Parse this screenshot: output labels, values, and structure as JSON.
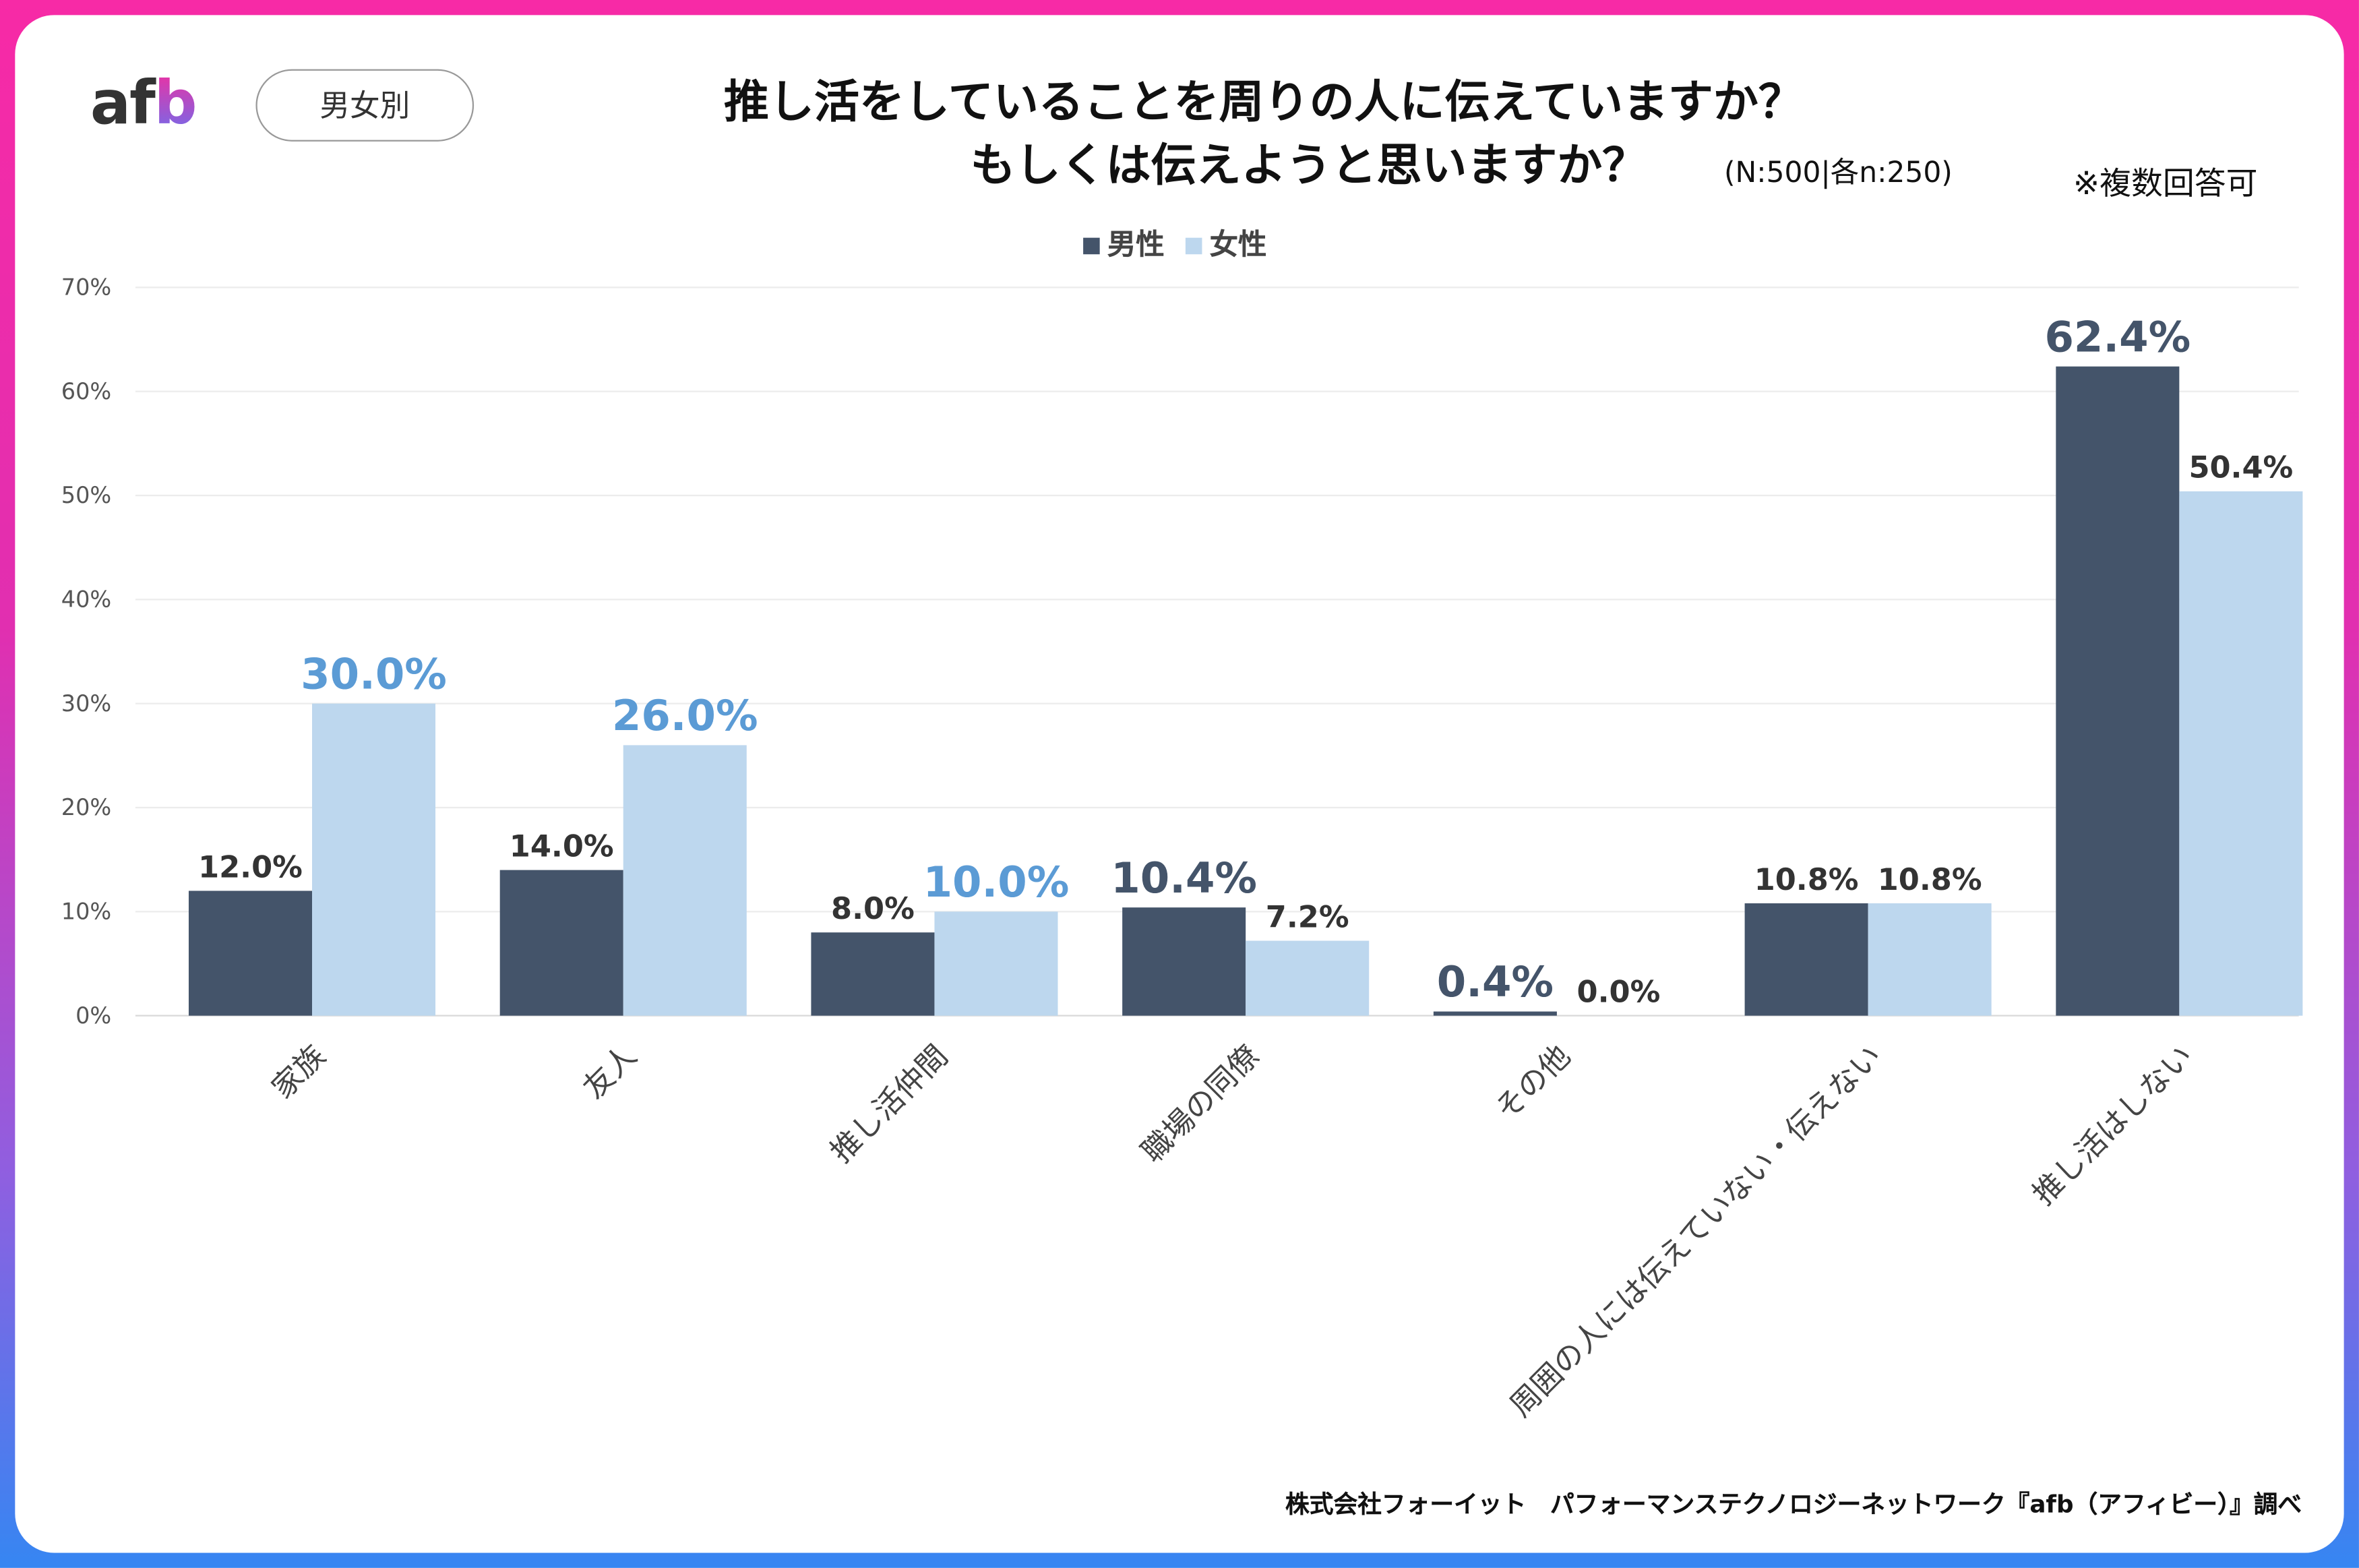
{
  "logo_text": "afb",
  "badge": "男女別",
  "title_line1": "推し活をしていることを周りの人に伝えていますか？",
  "title_line2": "もしくは伝えようと思いますか？",
  "sample_note": "(N:500|各n:250)",
  "multi_note": "※複数回答可",
  "source": "株式会社フォーイット　パフォーマンステクノロジーネットワーク『afb（アフィビー）』調べ",
  "colors": {
    "male": "#44546a",
    "female": "#bdd7ee",
    "female_emph_label": "#5b9bd5",
    "male_emph_label": "#44546a"
  },
  "chart_data": {
    "type": "bar",
    "title": "推し活をしていることを周りの人に伝えていますか？もしくは伝えようと思いますか？",
    "ylim": [
      0,
      70
    ],
    "yticks": [
      "0%",
      "10%",
      "20%",
      "30%",
      "40%",
      "50%",
      "60%",
      "70%"
    ],
    "legend": [
      "男性",
      "女性"
    ],
    "legend_position": "top-center",
    "categories": [
      "家族",
      "友人",
      "推し活仲間",
      "職場の同僚",
      "その他",
      "周囲の人には伝えていない・伝えない",
      "推し活はしない"
    ],
    "series": [
      {
        "name": "男性",
        "values": [
          12.0,
          14.0,
          8.0,
          10.4,
          0.4,
          10.8,
          62.4
        ],
        "labels": [
          "12.0%",
          "14.0%",
          "8.0%",
          "10.4%",
          "0.4%",
          "10.8%",
          "62.4%"
        ]
      },
      {
        "name": "女性",
        "values": [
          30.0,
          26.0,
          10.0,
          7.2,
          0.0,
          10.8,
          50.4
        ],
        "labels": [
          "30.0%",
          "26.0%",
          "10.0%",
          "7.2%",
          "0.0%",
          "10.8%",
          "50.4%"
        ]
      }
    ],
    "emphasis": [
      "女性",
      "女性",
      "女性",
      "男性",
      "男性",
      "",
      "男性"
    ]
  }
}
